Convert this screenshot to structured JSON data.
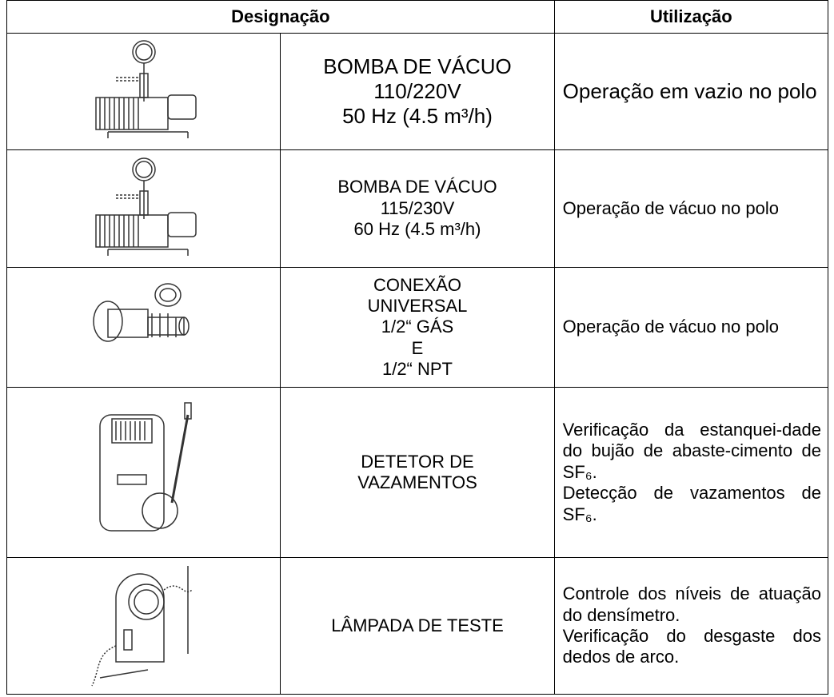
{
  "table": {
    "header": [
      "Designação",
      "Utilização"
    ],
    "rows": [
      {
        "designation": [
          "BOMBA DE VÁCUO",
          "110/220V",
          "50 Hz (4.5 m³/h)"
        ],
        "usage": [
          "Operação em vazio no polo"
        ]
      },
      {
        "designation": [
          "BOMBA DE VÁCUO",
          "115/230V",
          "60 Hz (4.5 m³/h)"
        ],
        "usage": [
          "Operação de vácuo no polo"
        ]
      },
      {
        "designation": [
          "CONEXÃO",
          "UNIVERSAL",
          "1/2“ GÁS",
          "E",
          "1/2“ NPT"
        ],
        "usage": [
          "Operação de vácuo no polo"
        ]
      },
      {
        "designation": [
          "DETETOR DE",
          "VAZAMENTOS"
        ],
        "usage": [
          "Verificação da estanquei-dade do bujão de abaste-cimento de SF₆.",
          "Detecção de vazamentos de SF₆."
        ]
      },
      {
        "designation": [
          "LÂMPADA DE TESTE"
        ],
        "usage": [
          "Controle dos níveis de atuação do densímetro.",
          "Verificação do desgaste dos dedos de arco."
        ]
      }
    ]
  }
}
